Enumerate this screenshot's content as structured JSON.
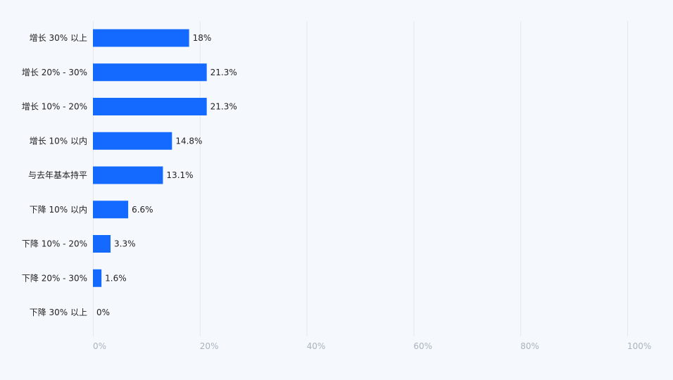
{
  "chart_data": {
    "type": "bar",
    "orientation": "horizontal",
    "categories": [
      "增长 30% 以上",
      "增长 20% - 30%",
      "增长 10% - 20%",
      "增长 10% 以内",
      "与去年基本持平",
      "下降 10% 以内",
      "下降 10% - 20%",
      "下降 20% - 30%",
      "下降 30% 以上"
    ],
    "values": [
      18,
      21.3,
      21.3,
      14.8,
      13.1,
      6.6,
      3.3,
      1.6,
      0
    ],
    "data_labels": [
      "18%",
      "21.3%",
      "21.3%",
      "14.8%",
      "13.1%",
      "6.6%",
      "3.3%",
      "1.6%",
      "0%"
    ],
    "xlim": [
      0,
      100
    ],
    "x_ticks": [
      "0%",
      "20%",
      "40%",
      "60%",
      "80%",
      "100%"
    ],
    "x_tick_values": [
      0,
      20,
      40,
      60,
      80,
      100
    ],
    "grid": true,
    "legend": "none",
    "title": "",
    "xlabel": "",
    "ylabel": "",
    "colors": {
      "bar": "#1469fe",
      "grid": "#e4e8ee",
      "tick_text": "#aab2bd",
      "label_text": "#222222",
      "background": "#f5f9fd"
    }
  }
}
